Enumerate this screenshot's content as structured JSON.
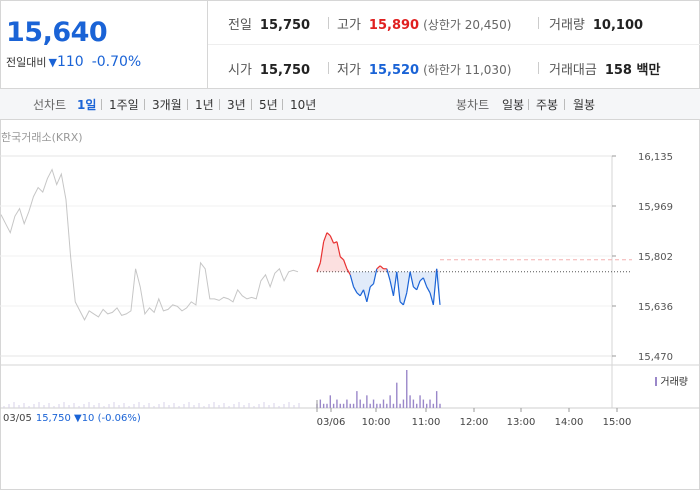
{
  "quote": {
    "price": "15,640",
    "change_label": "전일대비",
    "change_symbol": "▼",
    "change_amount": "110",
    "change_pct": "-0.70%",
    "prev_close": {
      "label": "전일",
      "value": "15,750"
    },
    "open": {
      "label": "시가",
      "value": "15,750"
    },
    "high": {
      "label": "고가",
      "value": "15,890",
      "sub": "(상한가 20,450)"
    },
    "low": {
      "label": "저가",
      "value": "15,520",
      "sub": "(하한가 11,030)"
    },
    "volume": {
      "label": "거래량",
      "value": "10,100"
    },
    "amount": {
      "label": "거래대금",
      "value": "158 백만"
    }
  },
  "tabs": {
    "line_label": "선차트",
    "line_items": [
      "1일",
      "1주일",
      "3개월",
      "1년",
      "3년",
      "5년",
      "10년"
    ],
    "selected": "1일",
    "candle_label": "봉차트",
    "candle_items": [
      "일봉",
      "주봉",
      "월봉"
    ]
  },
  "chart": {
    "source": "한국거래소(KRX)",
    "volume_legend": "거래량",
    "footer_date": "03/05",
    "footer_info": "15,750 ▼10 (-0.06%)",
    "colors": {
      "up": "#e83030",
      "down": "#1a63d6",
      "past": "#c6c6c6",
      "volume": "#9a87c9"
    }
  },
  "chart_data": {
    "type": "line",
    "y_ticks": [
      "16,135",
      "15,969",
      "15,802",
      "15,636",
      "15,470"
    ],
    "ylim": [
      15470,
      16135
    ],
    "x_ticks": [
      "03/06",
      "10:00",
      "11:00",
      "12:00",
      "13:00",
      "14:00",
      "15:00"
    ],
    "prev_close": 15750,
    "previous_day": {
      "date": "03/05",
      "values": [
        15940,
        15910,
        15880,
        15935,
        15960,
        15910,
        15950,
        16000,
        16030,
        16015,
        16060,
        16090,
        16040,
        16075,
        15990,
        15800,
        15650,
        15620,
        15590,
        15620,
        15610,
        15600,
        15625,
        15610,
        15615,
        15630,
        15605,
        15610,
        15620,
        15760,
        15700,
        15610,
        15630,
        15615,
        15660,
        15620,
        15625,
        15640,
        15635,
        15620,
        15630,
        15650,
        15640,
        15780,
        15760,
        15660,
        15660,
        15655,
        15665,
        15660,
        15650,
        15690,
        15670,
        15660,
        15665,
        15660,
        15720,
        15740,
        15700,
        15745,
        15760,
        15720,
        15750,
        15755,
        15750
      ]
    },
    "today": {
      "date": "03/06",
      "values": [
        15750,
        15780,
        15850,
        15880,
        15870,
        15845,
        15850,
        15800,
        15790,
        15760,
        15740,
        15700,
        15680,
        15670,
        15690,
        15650,
        15700,
        15710,
        15760,
        15770,
        15760,
        15760,
        15720,
        15670,
        15750,
        15650,
        15640,
        15680,
        15750,
        15700,
        15690,
        15720,
        15730,
        15700,
        15680,
        15640,
        15760,
        15640
      ]
    },
    "volume": [
      1,
      2,
      1,
      1,
      3,
      1,
      2,
      1,
      1,
      2,
      1,
      1,
      4,
      2,
      1,
      3,
      1,
      2,
      1,
      1,
      2,
      1,
      3,
      1,
      6,
      1,
      2,
      9,
      3,
      2,
      1,
      3,
      2,
      1,
      2,
      1,
      4,
      1
    ]
  }
}
